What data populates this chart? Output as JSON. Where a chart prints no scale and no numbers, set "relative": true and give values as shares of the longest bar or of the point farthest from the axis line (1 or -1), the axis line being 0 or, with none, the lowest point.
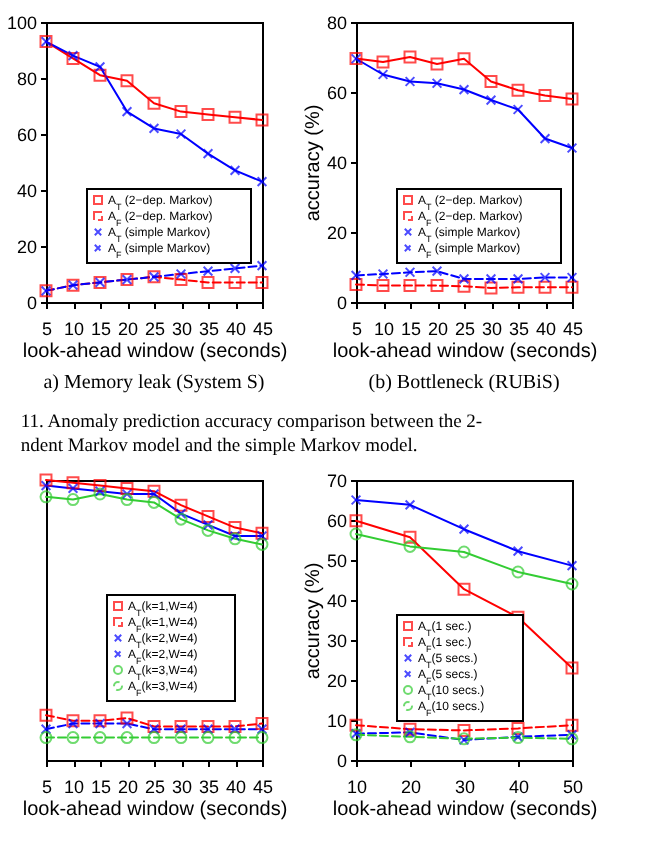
{
  "chart_data": [
    {
      "type": "line",
      "title": "a) Memory leak (System S)",
      "xlabel": "look-ahead window (seconds)",
      "x": [
        5,
        10,
        15,
        20,
        25,
        30,
        35,
        40,
        45
      ],
      "xlim": [
        5,
        45
      ],
      "xticks": [
        5,
        10,
        15,
        20,
        25,
        30,
        35,
        40,
        45
      ],
      "ylim": [
        0,
        100
      ],
      "yticks": [
        0,
        20,
        40,
        60,
        80,
        100
      ],
      "legend": "bottom left",
      "annotations": [
        "11.   Anomaly prediction accuracy comparison between the 2-",
        "ndent Markov model and the simple Markov model."
      ],
      "series": [
        {
          "name": "A$_{T}$ (2−dep. Markov)",
          "color": "#ff0000",
          "marker": "square",
          "line_style": "solid",
          "values": [
            93,
            87,
            81,
            79,
            71,
            68,
            67,
            66,
            65
          ]
        },
        {
          "name": "A$_{F}$ (2−dep. Markov)",
          "color": "#ff0000",
          "marker": "square",
          "line_style": "dashed",
          "values": [
            4,
            6,
            7,
            8,
            9,
            8,
            7,
            7,
            7
          ]
        },
        {
          "name": "A$_{T}$ (simple Markov)",
          "color": "#0000ff",
          "marker": "cross",
          "line_style": "solid",
          "values": [
            93,
            88,
            84,
            68,
            62,
            60,
            53,
            47,
            43
          ]
        },
        {
          "name": "A$_{F}$ (simple Markov)",
          "color": "#0000ff",
          "marker": "cross",
          "line_style": "dashed",
          "values": [
            4,
            6,
            7,
            8,
            9,
            10,
            11,
            12,
            13
          ]
        }
      ]
    },
    {
      "type": "line",
      "title": "(b) Bottleneck (RUBiS)",
      "xlabel": "look-ahead window (seconds)",
      "ylabel": "accuracy (%)",
      "x": [
        5,
        10,
        15,
        20,
        25,
        30,
        35,
        40,
        45
      ],
      "xlim": [
        5,
        45
      ],
      "xticks": [
        5,
        10,
        15,
        20,
        25,
        30,
        35,
        40,
        45
      ],
      "ylim": [
        0,
        80
      ],
      "yticks": [
        0,
        20,
        40,
        60,
        80
      ],
      "legend": "bottom left",
      "series": [
        {
          "name": "A$_{T}$ (2−dep. Markov)",
          "color": "#ff0000",
          "marker": "square",
          "line_style": "solid",
          "values": [
            69.6,
            68.6,
            70,
            68,
            69.5,
            63,
            60.5,
            59,
            58
          ]
        },
        {
          "name": "A$_{F}$ (2−dep. Markov)",
          "color": "#ff0000",
          "marker": "square",
          "line_style": "dashed",
          "values": [
            5,
            4.7,
            4.7,
            4.7,
            4.5,
            4,
            4.2,
            4.2,
            4.2
          ]
        },
        {
          "name": "A$_{T}$ (simple Markov)",
          "color": "#0000ff",
          "marker": "cross",
          "line_style": "solid",
          "values": [
            69.5,
            65,
            63,
            62.5,
            60.7,
            57.7,
            55,
            46.7,
            44
          ]
        },
        {
          "name": "A$_{F}$ (simple Markov)",
          "color": "#0000ff",
          "marker": "cross",
          "line_style": "dashed",
          "values": [
            7.6,
            8,
            8.5,
            8.8,
            6.6,
            6.6,
            6.6,
            7,
            7
          ]
        }
      ]
    },
    {
      "type": "line",
      "relative": true,
      "xlabel": "look-ahead window (seconds)",
      "x": [
        5,
        10,
        15,
        20,
        25,
        30,
        35,
        40,
        45
      ],
      "xlim": [
        5,
        45
      ],
      "xticks": [
        5,
        10,
        15,
        20,
        25,
        30,
        35,
        40,
        45
      ],
      "legend": "left",
      "series": [
        {
          "name": "A$_{T}$(k=1,W=4)",
          "color": "#ff0000",
          "marker": "square",
          "line_style": "solid",
          "values": [
            1,
            0.99,
            0.98,
            0.97,
            0.96,
            0.91,
            0.87,
            0.83,
            0.81
          ]
        },
        {
          "name": "A$_{F}$(k=1,W=4)",
          "color": "#ff0000",
          "marker": "square",
          "line_style": "dashed",
          "values": [
            0.16,
            0.14,
            0.14,
            0.15,
            0.12,
            0.12,
            0.12,
            0.12,
            0.13
          ]
        },
        {
          "name": "A$_{T}$(k=2,W=4)",
          "color": "#0000ff",
          "marker": "cross",
          "line_style": "solid",
          "values": [
            0.98,
            0.97,
            0.96,
            0.95,
            0.95,
            0.88,
            0.84,
            0.8,
            0.8
          ]
        },
        {
          "name": "A$_{F}$(k=2,W=4)",
          "color": "#0000ff",
          "marker": "cross",
          "line_style": "dashed",
          "values": [
            0.11,
            0.13,
            0.13,
            0.13,
            0.11,
            0.11,
            0.11,
            0.11,
            0.11
          ]
        },
        {
          "name": "A$_{T}$(k=3,W=4)",
          "color": "#33cc33",
          "marker": "circle",
          "line_style": "solid",
          "values": [
            0.94,
            0.93,
            0.95,
            0.93,
            0.92,
            0.86,
            0.82,
            0.79,
            0.77
          ]
        },
        {
          "name": "A$_{F}$(k=3,W=4)",
          "color": "#33cc33",
          "marker": "circle",
          "line_style": "dashed",
          "values": [
            0.08,
            0.08,
            0.08,
            0.08,
            0.08,
            0.08,
            0.08,
            0.08,
            0.08
          ]
        }
      ]
    },
    {
      "type": "line",
      "xlabel": "look-ahead window (seconds)",
      "ylabel": "accuracy (%)",
      "x": [
        10,
        20,
        30,
        40,
        50
      ],
      "xlim": [
        10,
        50
      ],
      "xticks": [
        10,
        20,
        30,
        40,
        50
      ],
      "ylim": [
        0,
        70
      ],
      "yticks": [
        0,
        10,
        20,
        30,
        40,
        50,
        60,
        70
      ],
      "legend": "bottom left",
      "series": [
        {
          "name": "A$_{T}$(1 sec.)",
          "color": "#ff0000",
          "marker": "square",
          "line_style": "solid",
          "values": [
            59.8,
            55.7,
            42.7,
            35.7,
            23
          ]
        },
        {
          "name": "A$_{F}$(1 sec.)",
          "color": "#ff0000",
          "marker": "square",
          "line_style": "dashed",
          "values": [
            8.7,
            7.7,
            7.4,
            7.9,
            8.7
          ]
        },
        {
          "name": "A$_{T}$(5 secs.)",
          "color": "#0000ff",
          "marker": "cross",
          "line_style": "solid",
          "values": [
            65,
            63.8,
            57.7,
            52.2,
            48.6
          ]
        },
        {
          "name": "A$_{F}$(5 secs.)",
          "color": "#0000ff",
          "marker": "cross",
          "line_style": "dashed",
          "values": [
            6.6,
            6.9,
            5,
            5.8,
            6.3
          ]
        },
        {
          "name": "A$_{T}$(10 secs.)",
          "color": "#33cc33",
          "marker": "circle",
          "line_style": "solid",
          "values": [
            56.5,
            53.4,
            52,
            47,
            44
          ]
        },
        {
          "name": "A$_{F}$(10 secs.)",
          "color": "#33cc33",
          "marker": "circle",
          "line_style": "dashed",
          "values": [
            6.3,
            5.8,
            5.3,
            5.6,
            5.3
          ]
        }
      ]
    }
  ]
}
